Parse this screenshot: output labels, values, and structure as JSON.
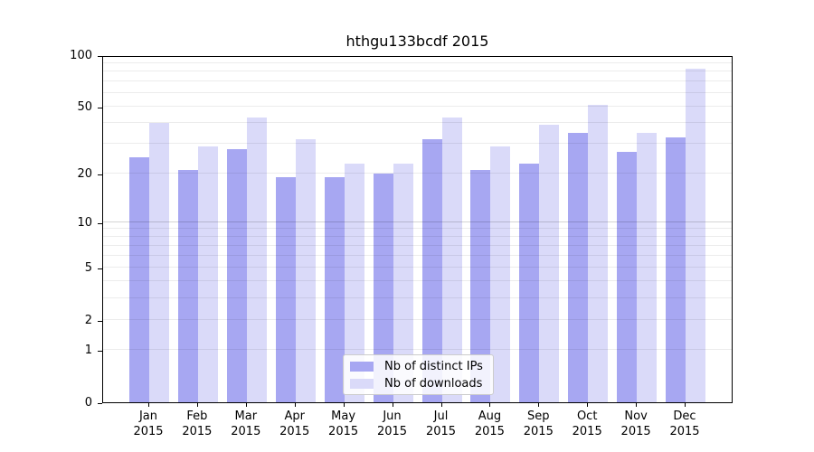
{
  "chart_data": {
    "type": "bar",
    "title": "hthgu133bcdf 2015",
    "yscale": "log1p",
    "ylim": [
      0,
      100
    ],
    "yticks": [
      0,
      1,
      2,
      5,
      10,
      20,
      50,
      100
    ],
    "grid": true,
    "legend_position": "lower center",
    "categories": [
      "Jan",
      "Feb",
      "Mar",
      "Apr",
      "May",
      "Jun",
      "Jul",
      "Aug",
      "Sep",
      "Oct",
      "Nov",
      "Dec"
    ],
    "category_year": "2015",
    "series": [
      {
        "name": "Nb of distinct IPs",
        "color": "#a7a7f2",
        "values": [
          25,
          21,
          28,
          19,
          19,
          20,
          32,
          21,
          23,
          35,
          27,
          33
        ]
      },
      {
        "name": "Nb of downloads",
        "color": "#dadaf9",
        "values": [
          40,
          29,
          43,
          32,
          23,
          23,
          43,
          29,
          39,
          51,
          35,
          83
        ]
      }
    ]
  }
}
